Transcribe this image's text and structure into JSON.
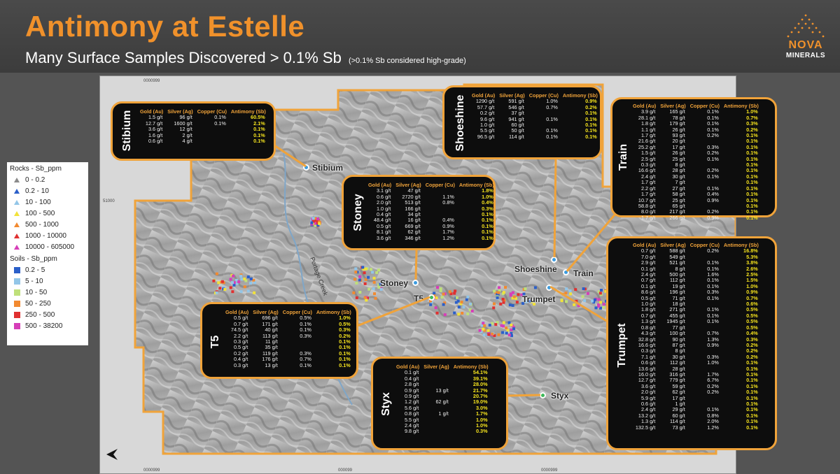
{
  "header": {
    "title": "Antimony at Estelle",
    "subtitle": "Many Surface Samples Discovered > 0.1% Sb",
    "subtitle_note": "(>0.1% Sb considered high-grade)",
    "logo_text": "NOVA",
    "logo_sub": "MINERALS"
  },
  "colors": {
    "accent": "#f0912b",
    "callout_border": "#f0a33a",
    "sb_value": "#f7e51e"
  },
  "legend": {
    "rocks_title": "Rocks - Sb_ppm",
    "rocks": [
      {
        "label": "0 - 0.2",
        "color": "#8a8a8a"
      },
      {
        "label": "0.2 - 10",
        "color": "#2b5fc9"
      },
      {
        "label": "10 - 100",
        "color": "#93c6e8"
      },
      {
        "label": "100 - 500",
        "color": "#f2e23a"
      },
      {
        "label": "500 - 1000",
        "color": "#f28a30"
      },
      {
        "label": "1000 - 10000",
        "color": "#e03030"
      },
      {
        "label": "10000 - 605000",
        "color": "#d63eb8"
      }
    ],
    "soils_title": "Soils - Sb_ppm",
    "soils": [
      {
        "label": "0.2 - 5",
        "color": "#2b5fc9"
      },
      {
        "label": "5 - 10",
        "color": "#93c6e8"
      },
      {
        "label": "10 - 50",
        "color": "#bfe07a"
      },
      {
        "label": "50 - 250",
        "color": "#f28a30"
      },
      {
        "label": "250 - 500",
        "color": "#e03030"
      },
      {
        "label": "500 - 38200",
        "color": "#d63eb8"
      }
    ]
  },
  "map": {
    "creek_label": "Portage Creek",
    "grid_labels": [
      "0000999",
      "51000",
      "51000",
      "0000999",
      "000099",
      "0000999"
    ],
    "sites": [
      {
        "name": "Stibium",
        "color": "#3b9be0"
      },
      {
        "name": "Stoney",
        "color": "#3b9be0"
      },
      {
        "name": "T5",
        "color": "#3db85a"
      },
      {
        "name": "Shoeshine",
        "color": "#3b9be0"
      },
      {
        "name": "Train",
        "color": "#3b9be0"
      },
      {
        "name": "Trumpet",
        "color": "#3b9be0"
      },
      {
        "name": "Styx",
        "color": "#3db85a"
      }
    ]
  },
  "callouts": {
    "stibium": {
      "label": "Stibium",
      "headers": [
        "Gold (Au)",
        "Silver (Ag)",
        "Copper (Cu)",
        "Antimony (Sb)"
      ],
      "rows": [
        [
          "1.5 g/t",
          "96 g/t",
          "0.1%",
          "60.5%"
        ],
        [
          "12.7 g/t",
          "1600 g/t",
          "0.1%",
          "2.1%"
        ],
        [
          "3.6 g/t",
          "12 g/t",
          "",
          "0.1%"
        ],
        [
          "1.6 g/t",
          "2 g/t",
          "",
          "0.1%"
        ],
        [
          "0.6 g/t",
          "4 g/t",
          "",
          "0.1%"
        ]
      ]
    },
    "shoeshine": {
      "label": "Shoeshine",
      "headers": [
        "Gold (Au)",
        "Silver (Ag)",
        "Copper (Cu)",
        "Antimony (Sb)"
      ],
      "rows": [
        [
          "1290 g/t",
          "591 g/t",
          "1.0%",
          "0.9%"
        ],
        [
          "57.7 g/t",
          "546 g/t",
          "0.7%",
          "0.2%"
        ],
        [
          "0.2 g/t",
          "37 g/t",
          "",
          "0.1%"
        ],
        [
          "9.6 g/t",
          "941 g/t",
          "0.1%",
          "0.1%"
        ],
        [
          "1.0 g/t",
          "60 g/t",
          "",
          "0.1%"
        ],
        [
          "5.5 g/t",
          "50 g/t",
          "0.1%",
          "0.1%"
        ],
        [
          "96.5 g/t",
          "114 g/t",
          "0.1%",
          "0.1%"
        ]
      ]
    },
    "train": {
      "label": "Train",
      "headers": [
        "Gold (Au)",
        "Silver (Ag)",
        "Copper (Cu)",
        "Antimony (Sb)"
      ],
      "rows": [
        [
          "3.9 g/t",
          "165 g/t",
          "0.1%",
          "1.0%"
        ],
        [
          "28.1 g/t",
          "78 g/t",
          "0.1%",
          "0.7%"
        ],
        [
          "1.8 g/t",
          "179 g/t",
          "0.1%",
          "0.3%"
        ],
        [
          "1.1 g/t",
          "26 g/t",
          "0.1%",
          "0.2%"
        ],
        [
          "1.7 g/t",
          "93 g/t",
          "0.2%",
          "0.1%"
        ],
        [
          "21.6 g/t",
          "20 g/t",
          "",
          "0.1%"
        ],
        [
          "25.2 g/t",
          "17 g/t",
          "0.3%",
          "0.1%"
        ],
        [
          "1.5 g/t",
          "26 g/t",
          "0.2%",
          "0.1%"
        ],
        [
          "2.5 g/t",
          "25 g/t",
          "0.1%",
          "0.1%"
        ],
        [
          "0.3 g/t",
          "8 g/t",
          "",
          "0.1%"
        ],
        [
          "16.6 g/t",
          "28 g/t",
          "0.2%",
          "0.1%"
        ],
        [
          "2.4 g/t",
          "30 g/t",
          "0.1%",
          "0.1%"
        ],
        [
          "1.7 g/t",
          "7 g/t",
          "",
          "0.1%"
        ],
        [
          "2.2 g/t",
          "27 g/t",
          "0.1%",
          "0.1%"
        ],
        [
          "1.7 g/t",
          "58 g/t",
          "0.4%",
          "0.1%"
        ],
        [
          "10.7 g/t",
          "25 g/t",
          "0.9%",
          "0.1%"
        ],
        [
          "58.8 g/t",
          "65 g/t",
          "",
          "0.1%"
        ],
        [
          "8.0 g/t",
          "217 g/t",
          "0.2%",
          "0.1%"
        ],
        [
          "1.7 g/t",
          "266 g/t",
          "0.9%",
          "0.1%"
        ]
      ]
    },
    "stoney": {
      "label": "Stoney",
      "headers": [
        "Gold (Au)",
        "Silver (Ag)",
        "Copper (Cu)",
        "Antimony (Sb)"
      ],
      "rows": [
        [
          "3.1 g/t",
          "47 g/t",
          "",
          "1.8%"
        ],
        [
          "0.6 g/t",
          "2720 g/t",
          "1.1%",
          "1.0%"
        ],
        [
          "2.0 g/t",
          "513 g/t",
          "0.8%",
          "0.4%"
        ],
        [
          "1.0 g/t",
          "166 g/t",
          "",
          "0.3%"
        ],
        [
          "0.4 g/t",
          "34 g/t",
          "",
          "0.1%"
        ],
        [
          "48.4 g/t",
          "16 g/t",
          "0.4%",
          "0.1%"
        ],
        [
          "0.5 g/t",
          "669 g/t",
          "0.9%",
          "0.1%"
        ],
        [
          "8.1 g/t",
          "62 g/t",
          "1.7%",
          "0.1%"
        ],
        [
          "3.6 g/t",
          "346 g/t",
          "1.2%",
          "0.1%"
        ]
      ]
    },
    "trumpet": {
      "label": "Trumpet",
      "headers": [
        "Gold (Au)",
        "Silver (Ag)",
        "Copper (Cu)",
        "Antimony (Sb)"
      ],
      "rows": [
        [
          "0.7 g/t",
          "588 g/t",
          "0.2%",
          "16.8%"
        ],
        [
          "7.0 g/t",
          "549 g/t",
          "",
          "5.3%"
        ],
        [
          "2.9 g/t",
          "521 g/t",
          "0.1%",
          "3.8%"
        ],
        [
          "0.1 g/t",
          "8 g/t",
          "0.1%",
          "2.6%"
        ],
        [
          "2.4 g/t",
          "500 g/t",
          "1.6%",
          "2.5%"
        ],
        [
          "0.7 g/t",
          "112 g/t",
          "0.1%",
          "1.5%"
        ],
        [
          "0.1 g/t",
          "19 g/t",
          "0.1%",
          "1.0%"
        ],
        [
          "8.6 g/t",
          "196 g/t",
          "0.3%",
          "0.9%"
        ],
        [
          "0.5 g/t",
          "71 g/t",
          "0.1%",
          "0.7%"
        ],
        [
          "1.0 g/t",
          "18 g/t",
          "",
          "0.6%"
        ],
        [
          "1.8 g/t",
          "271 g/t",
          "0.1%",
          "0.5%"
        ],
        [
          "0.7 g/t",
          "455 g/t",
          "0.1%",
          "0.5%"
        ],
        [
          "1.3 g/t",
          "1945 g/t",
          "0.1%",
          "0.5%"
        ],
        [
          "0.8 g/t",
          "77 g/t",
          "",
          "0.5%"
        ],
        [
          "4.3 g/t",
          "100 g/t",
          "0.7%",
          "0.4%"
        ],
        [
          "32.8 g/t",
          "90 g/t",
          "1.3%",
          "0.3%"
        ],
        [
          "16.6 g/t",
          "87 g/t",
          "0.9%",
          "0.2%"
        ],
        [
          "0.3 g/t",
          "8 g/t",
          "",
          "0.2%"
        ],
        [
          "7.1 g/t",
          "30 g/t",
          "0.3%",
          "0.2%"
        ],
        [
          "0.6 g/t",
          "112 g/t",
          "1.0%",
          "0.1%"
        ],
        [
          "13.6 g/t",
          "28 g/t",
          "",
          "0.1%"
        ],
        [
          "16.0 g/t",
          "316 g/t",
          "1.7%",
          "0.1%"
        ],
        [
          "12.7 g/t",
          "779 g/t",
          "6.7%",
          "0.1%"
        ],
        [
          "3.6 g/t",
          "59 g/t",
          "0.2%",
          "0.1%"
        ],
        [
          "2.0 g/t",
          "62 g/t",
          "0.2%",
          "0.1%"
        ],
        [
          "5.9 g/t",
          "17 g/t",
          "",
          "0.1%"
        ],
        [
          "0.6 g/t",
          "1 g/t",
          "",
          "0.1%"
        ],
        [
          "2.4 g/t",
          "29 g/t",
          "0.1%",
          "0.1%"
        ],
        [
          "13.2 g/t",
          "60 g/t",
          "0.8%",
          "0.1%"
        ],
        [
          "1.3 g/t",
          "114 g/t",
          "2.0%",
          "0.1%"
        ],
        [
          "132.5 g/t",
          "73 g/t",
          "1.2%",
          "0.1%"
        ]
      ]
    },
    "t5": {
      "label": "T5",
      "headers": [
        "Gold (Au)",
        "Silver (Ag)",
        "Copper (Cu)",
        "Antimony (Sb)"
      ],
      "rows": [
        [
          "0.5 g/t",
          "696 g/t",
          "0.5%",
          "1.0%"
        ],
        [
          "0.7 g/t",
          "171 g/t",
          "0.1%",
          "0.5%"
        ],
        [
          "74.5 g/t",
          "40 g/t",
          "0.1%",
          "0.3%"
        ],
        [
          "2.2 g/t",
          "113 g/t",
          "0.3%",
          "0.2%"
        ],
        [
          "0.3 g/t",
          "11 g/t",
          "",
          "0.1%"
        ],
        [
          "0.5 g/t",
          "35 g/t",
          "",
          "0.1%"
        ],
        [
          "0.2 g/t",
          "119 g/t",
          "0.3%",
          "0.1%"
        ],
        [
          "0.4 g/t",
          "176 g/t",
          "0.7%",
          "0.1%"
        ],
        [
          "0.3 g/t",
          "13 g/t",
          "0.1%",
          "0.1%"
        ]
      ]
    },
    "styx": {
      "label": "Styx",
      "headers": [
        "Gold (Au)",
        "Silver (Ag)",
        "Antimony (Sb)"
      ],
      "rows": [
        [
          "0.1 g/t",
          "",
          "54.1%"
        ],
        [
          "0.4 g/t",
          "",
          "39.1%"
        ],
        [
          "2.8 g/t",
          "",
          "28.0%"
        ],
        [
          "0.9 g/t",
          "13 g/t",
          "21.7%"
        ],
        [
          "0.9 g/t",
          "",
          "20.7%"
        ],
        [
          "1.2 g/t",
          "62 g/t",
          "19.0%"
        ],
        [
          "5.6 g/t",
          "",
          "3.0%"
        ],
        [
          "0.8 g/t",
          "1 g/t",
          "1.7%"
        ],
        [
          "5.5 g/t",
          "",
          "1.0%"
        ],
        [
          "2.4 g/t",
          "",
          "1.0%"
        ],
        [
          "9.8 g/t",
          "",
          "0.3%"
        ]
      ]
    }
  }
}
